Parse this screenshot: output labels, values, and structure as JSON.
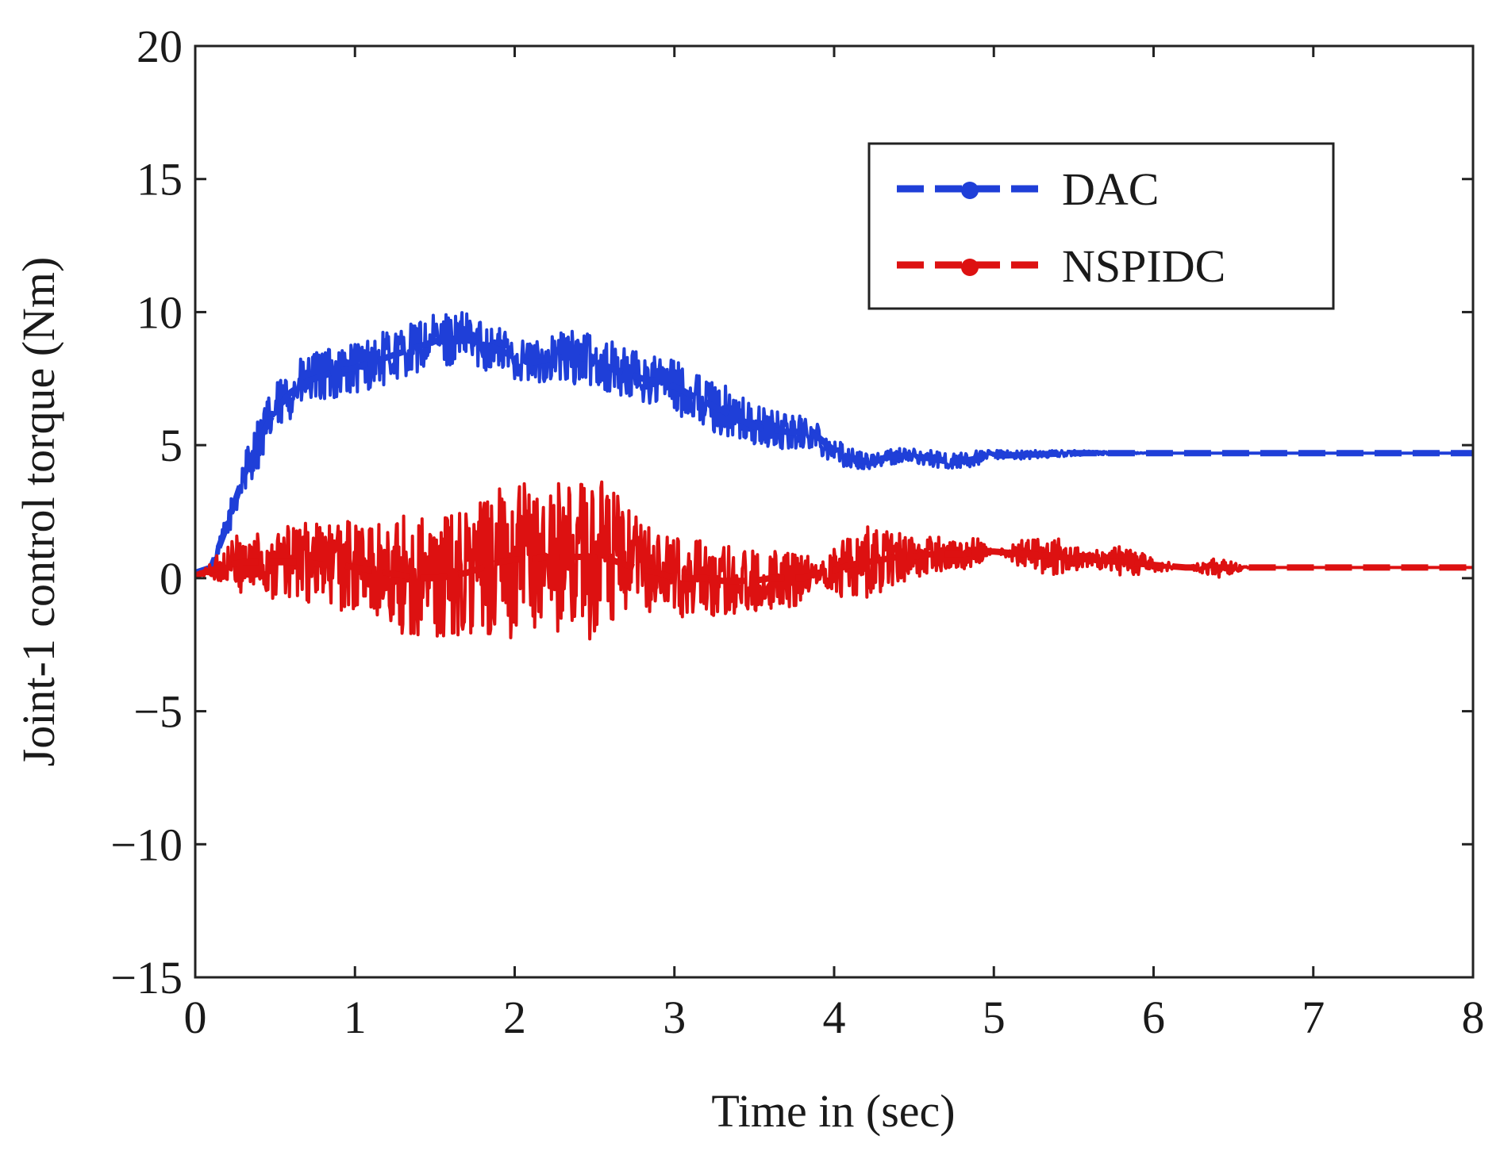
{
  "chart_data": {
    "type": "line",
    "title": "",
    "xlabel": "Time in (sec)",
    "ylabel": "Joint-1 control torque (Nm)",
    "xlim": [
      0,
      8
    ],
    "ylim": [
      -15,
      20
    ],
    "xticks": [
      0,
      1,
      2,
      3,
      4,
      5,
      6,
      7,
      8
    ],
    "yticks": [
      -15,
      -10,
      -5,
      0,
      5,
      10,
      15,
      20
    ],
    "xtick_labels": [
      "0",
      "1",
      "2",
      "3",
      "4",
      "5",
      "6",
      "7",
      "8"
    ],
    "ytick_labels": [
      "−15",
      "−10",
      "−5",
      "0",
      "5",
      "10",
      "15",
      "20"
    ],
    "grid": false,
    "legend_position": "top-right",
    "series": [
      {
        "name": "DAC",
        "color": "#1f3fd8",
        "style": "dashed",
        "x": [
          0,
          0.1,
          0.2,
          0.3,
          0.4,
          0.5,
          0.6,
          0.7,
          0.8,
          0.9,
          1.0,
          1.1,
          1.2,
          1.3,
          1.4,
          1.5,
          1.6,
          1.7,
          1.8,
          1.9,
          2.0,
          2.1,
          2.2,
          2.3,
          2.4,
          2.5,
          2.6,
          2.7,
          2.8,
          2.9,
          3.0,
          3.1,
          3.2,
          3.3,
          3.4,
          3.5,
          3.6,
          3.7,
          3.8,
          3.9,
          4.0,
          4.1,
          4.2,
          4.3,
          4.4,
          4.5,
          4.6,
          4.7,
          4.8,
          4.9,
          5.0,
          5.5,
          6.0,
          6.5,
          7.0,
          7.5,
          8.0
        ],
        "y": [
          0.2,
          0.4,
          2.0,
          3.8,
          5.2,
          6.3,
          7.0,
          7.4,
          7.6,
          7.8,
          7.9,
          8.1,
          8.3,
          8.5,
          8.7,
          8.9,
          9.0,
          9.0,
          8.8,
          8.6,
          8.3,
          8.1,
          8.2,
          8.3,
          8.3,
          8.2,
          7.9,
          7.7,
          7.5,
          7.4,
          7.2,
          6.9,
          6.6,
          6.3,
          6.0,
          5.7,
          5.6,
          5.5,
          5.5,
          5.3,
          4.8,
          4.5,
          4.4,
          4.5,
          4.6,
          4.6,
          4.5,
          4.4,
          4.4,
          4.5,
          4.6,
          4.7,
          4.7,
          4.7,
          4.7,
          4.7,
          4.7
        ],
        "noise": [
          0,
          0,
          0.5,
          0.8,
          1.0,
          1.0,
          1.0,
          1.0,
          1.0,
          1.0,
          1.0,
          1.0,
          1.0,
          1.0,
          1.0,
          1.0,
          1.0,
          1.0,
          1.0,
          0.9,
          0.8,
          0.8,
          0.9,
          1.0,
          1.0,
          1.0,
          1.0,
          1.0,
          1.0,
          1.0,
          1.0,
          1.0,
          1.0,
          1.0,
          0.9,
          0.8,
          0.7,
          0.7,
          0.6,
          0.6,
          0.5,
          0.4,
          0.3,
          0.3,
          0.3,
          0.3,
          0.3,
          0.3,
          0.3,
          0.3,
          0.2,
          0.1,
          0,
          0,
          0,
          0,
          0
        ]
      },
      {
        "name": "NSPIDC",
        "color": "#dd1111",
        "style": "dashed",
        "x": [
          0,
          0.1,
          0.2,
          0.3,
          0.4,
          0.5,
          0.6,
          0.7,
          0.8,
          0.9,
          1.0,
          1.1,
          1.2,
          1.3,
          1.4,
          1.5,
          1.6,
          1.7,
          1.8,
          1.9,
          2.0,
          2.1,
          2.2,
          2.3,
          2.4,
          2.5,
          2.6,
          2.7,
          2.8,
          2.9,
          3.0,
          3.1,
          3.2,
          3.3,
          3.4,
          3.5,
          3.6,
          3.7,
          3.8,
          3.9,
          4.0,
          4.1,
          4.2,
          4.3,
          4.4,
          4.5,
          4.6,
          4.7,
          4.8,
          4.9,
          5.0,
          5.2,
          5.4,
          5.6,
          5.8,
          6.0,
          6.2,
          6.4,
          6.6,
          7.0,
          7.5,
          8.0
        ],
        "y": [
          0.1,
          0.3,
          0.5,
          0.6,
          0.6,
          0.6,
          0.6,
          0.6,
          0.5,
          0.5,
          0.4,
          0.3,
          0.2,
          0.1,
          0.0,
          0.0,
          0.1,
          0.2,
          0.4,
          0.6,
          0.7,
          0.7,
          0.8,
          0.8,
          0.8,
          0.8,
          0.7,
          0.5,
          0.3,
          0.2,
          0.0,
          0.0,
          0.0,
          -0.1,
          -0.1,
          -0.1,
          0.0,
          0.0,
          0.0,
          0.2,
          0.3,
          0.5,
          0.6,
          0.7,
          0.8,
          0.8,
          0.9,
          0.9,
          0.9,
          1.0,
          1.0,
          0.9,
          0.8,
          0.7,
          0.6,
          0.5,
          0.4,
          0.4,
          0.4,
          0.4,
          0.4,
          0.4
        ],
        "noise": [
          0,
          0.3,
          0.8,
          1.2,
          1.3,
          1.4,
          1.5,
          1.5,
          1.6,
          1.7,
          1.8,
          2.0,
          2.2,
          2.3,
          2.4,
          2.4,
          2.5,
          2.5,
          2.6,
          2.8,
          3.0,
          2.9,
          2.8,
          2.8,
          3.0,
          3.2,
          2.8,
          2.2,
          1.8,
          1.6,
          1.5,
          1.5,
          1.4,
          1.3,
          1.3,
          1.2,
          1.2,
          1.1,
          1.0,
          0.3,
          1.0,
          1.2,
          1.4,
          1.2,
          1.0,
          0.8,
          0.7,
          0.6,
          0.6,
          0.5,
          0.0,
          0.6,
          0.7,
          0.3,
          0.6,
          0.3,
          0.0,
          0.4,
          0.0,
          0.0,
          0.0,
          0.0
        ]
      }
    ]
  }
}
